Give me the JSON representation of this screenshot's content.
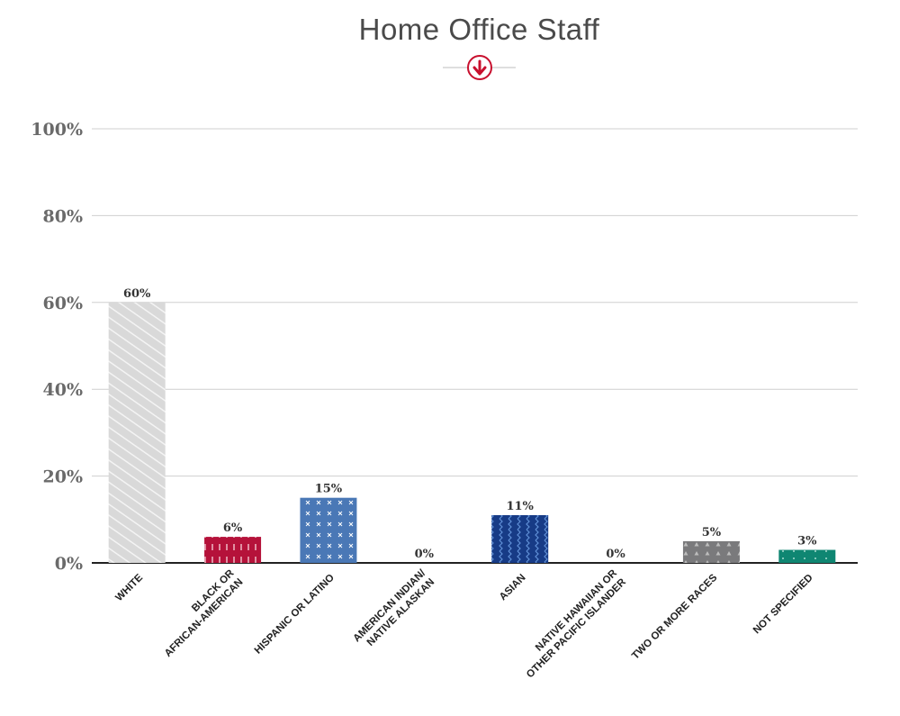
{
  "chart_data": {
    "type": "bar",
    "title": "Home Office Staff",
    "categories": [
      [
        "WHITE"
      ],
      [
        "BLACK OR",
        "AFRICAN-AMERICAN"
      ],
      [
        "HISPANIC OR LATINO"
      ],
      [
        "AMERICAN INDIAN/",
        "NATIVE ALASKAN"
      ],
      [
        "ASIAN"
      ],
      [
        "NATIVE HAWAIIAN OR",
        "OTHER PACIFIC ISLANDER"
      ],
      [
        "TWO OR MORE RACES"
      ],
      [
        "NOT SPECIFIED"
      ]
    ],
    "values": [
      60,
      6,
      15,
      0,
      11,
      0,
      5,
      3
    ],
    "value_labels": [
      "60%",
      "6%",
      "15%",
      "0%",
      "11%",
      "0%",
      "5%",
      "3%"
    ],
    "ylim": [
      0,
      100
    ],
    "yticks": [
      0,
      20,
      40,
      60,
      80,
      100
    ],
    "ytick_labels": [
      "0%",
      "20%",
      "40%",
      "60%",
      "80%",
      "100%"
    ],
    "xlabel": "",
    "ylabel": "",
    "grid": true,
    "legend": "none",
    "colors": [
      "#d9d9d9",
      "#b5123a",
      "#4a78b6",
      "#cccccc",
      "#173b86",
      "#cccccc",
      "#7a7a7c",
      "#0f8672"
    ],
    "patterns": [
      "diagonal-stripes",
      "dashes",
      "crosses",
      "none",
      "waves",
      "none",
      "triangles",
      "dots"
    ]
  },
  "decor": {
    "down_arrow_icon": "circled-down-arrow-icon",
    "accent_color": "#c8102e"
  }
}
